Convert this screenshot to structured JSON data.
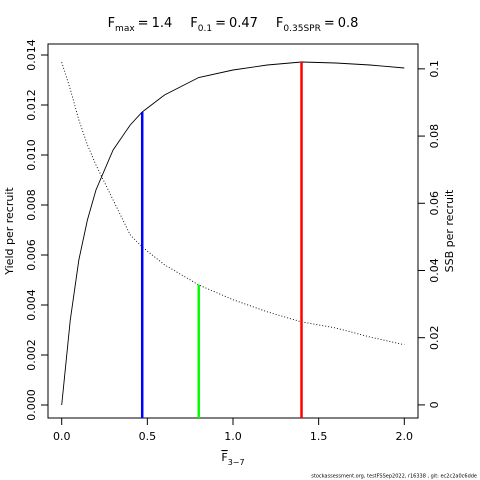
{
  "chart_data": {
    "type": "line",
    "relation": "=",
    "reference_lines": [
      {
        "label": "F",
        "sub": "max",
        "x": 1.4,
        "y": 0.01372,
        "axis": "y",
        "color": "#ff0000"
      },
      {
        "label": "F",
        "sub": "0.1",
        "x": 0.47,
        "y": 0.01172,
        "axis": "y",
        "color": "#0000ff"
      },
      {
        "label": "F",
        "sub": "0.35SPR",
        "x": 0.8,
        "y": 0.0357,
        "axis": "y2",
        "color": "#00ff00"
      }
    ],
    "xlabel": "F",
    "xlabel_sub": "3−7",
    "ylabel": "Yield per recruit",
    "y2label": "SSB per recruit",
    "footer": "stockassessment.org, testFSSep2022, r16338 , git: ec2c2a0c6dde",
    "x": [
      0,
      0.05,
      0.1,
      0.15,
      0.2,
      0.3,
      0.4,
      0.47,
      0.6,
      0.8,
      1.0,
      1.2,
      1.4,
      1.6,
      1.8,
      2.0
    ],
    "series": [
      {
        "color": "#000000",
        "linestyle": "solid",
        "axis": "y",
        "values": [
          0,
          0.0034,
          0.0058,
          0.0074,
          0.0086,
          0.0102,
          0.0112,
          0.01172,
          0.0124,
          0.0131,
          0.0134,
          0.0136,
          0.01372,
          0.01368,
          0.0136,
          0.01348
        ]
      },
      {
        "color": "#000000",
        "linestyle": "dotted",
        "axis": "y2",
        "values": [
          0.102,
          0.094,
          0.0848,
          0.0774,
          0.0714,
          0.061,
          0.0506,
          0.047,
          0.0417,
          0.0357,
          0.0313,
          0.0277,
          0.0247,
          0.0229,
          0.0202,
          0.0179
        ]
      }
    ],
    "xlim": [
      -0.08,
      2.08
    ],
    "xticks": [
      {
        "value": 0,
        "label": "0.0"
      },
      0.5,
      {
        "value": 1,
        "label": "1.0"
      },
      1.5,
      {
        "value": 2,
        "label": "2.0"
      }
    ],
    "ylim": [
      -0.00052,
      0.01444
    ],
    "yticks": [
      {
        "value": 0,
        "label": "0.000"
      },
      {
        "value": 0.002,
        "label": "0.002"
      },
      {
        "value": 0.004,
        "label": "0.004"
      },
      {
        "value": 0.006,
        "label": "0.006"
      },
      {
        "value": 0.008,
        "label": "0.008"
      },
      {
        "value": 0.01,
        "label": "0.010"
      },
      {
        "value": 0.012,
        "label": "0.012"
      },
      {
        "value": 0.014,
        "label": "0.014"
      }
    ],
    "y2lim": [
      -0.0039,
      0.1074
    ],
    "y2ticks": [
      0,
      0.02,
      0.04,
      0.06,
      0.08,
      0.1
    ]
  }
}
